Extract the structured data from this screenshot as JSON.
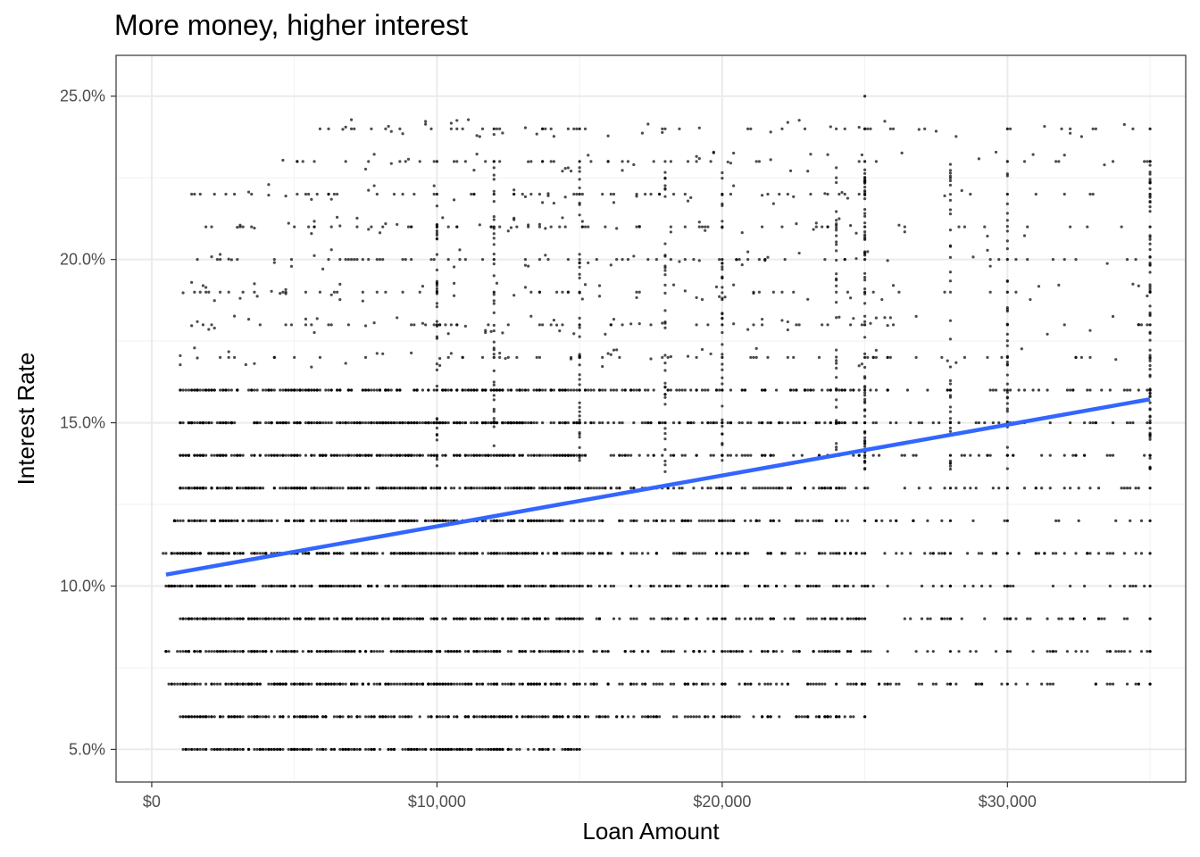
{
  "chart_data": {
    "type": "scatter",
    "title": "More money, higher interest",
    "xlabel": "Loan Amount",
    "ylabel": "Interest Rate",
    "xlim": [
      -1250,
      36250
    ],
    "ylim": [
      0.04,
      0.2625
    ],
    "x_ticks": [
      {
        "value": 0,
        "label": "$0"
      },
      {
        "value": 10000,
        "label": "$10,000"
      },
      {
        "value": 20000,
        "label": "$20,000"
      },
      {
        "value": 30000,
        "label": "$30,000"
      }
    ],
    "y_ticks": [
      {
        "value": 0.05,
        "label": "5.0%"
      },
      {
        "value": 0.1,
        "label": "10.0%"
      },
      {
        "value": 0.15,
        "label": "15.0%"
      },
      {
        "value": 0.2,
        "label": "20.0%"
      },
      {
        "value": 0.25,
        "label": "25.0%"
      }
    ],
    "points_description_rows": [
      {
        "rate": 0.05,
        "x_min": 1000,
        "x_max": 15000,
        "dense": true
      },
      {
        "rate": 0.06,
        "x_min": 1000,
        "x_max": 25500,
        "dense": true
      },
      {
        "rate": 0.07,
        "x_min": 600,
        "x_max": 35000,
        "dense": true
      },
      {
        "rate": 0.08,
        "x_min": 400,
        "x_max": 35000,
        "dense": true
      },
      {
        "rate": 0.09,
        "x_min": 1000,
        "x_max": 35000,
        "dense": true
      },
      {
        "rate": 0.1,
        "x_min": 400,
        "x_max": 35000,
        "dense": true
      },
      {
        "rate": 0.11,
        "x_min": 400,
        "x_max": 35000,
        "dense": true
      },
      {
        "rate": 0.12,
        "x_min": 700,
        "x_max": 35000,
        "dense": true
      },
      {
        "rate": 0.13,
        "x_min": 1000,
        "x_max": 35000,
        "dense": true
      },
      {
        "rate": 0.14,
        "x_min": 1000,
        "x_max": 35000,
        "dense": true
      },
      {
        "rate": 0.15,
        "x_min": 1000,
        "x_max": 35000,
        "dense": true
      },
      {
        "rate": 0.16,
        "x_min": 1000,
        "x_max": 35000,
        "dense": true
      },
      {
        "rate": 0.17,
        "x_min": 1000,
        "x_max": 35000,
        "dense": false
      },
      {
        "rate": 0.18,
        "x_min": 1000,
        "x_max": 35000,
        "dense": false
      },
      {
        "rate": 0.19,
        "x_min": 1000,
        "x_max": 35000,
        "dense": false
      },
      {
        "rate": 0.2,
        "x_min": 1500,
        "x_max": 35000,
        "dense": false
      },
      {
        "rate": 0.21,
        "x_min": 1500,
        "x_max": 35000,
        "dense": false
      },
      {
        "rate": 0.22,
        "x_min": 1300,
        "x_max": 35000,
        "dense": false
      },
      {
        "rate": 0.23,
        "x_min": 4000,
        "x_max": 35000,
        "dense": false
      },
      {
        "rate": 0.24,
        "x_min": 5800,
        "x_max": 35000,
        "dense": false
      },
      {
        "rate": 0.25,
        "x_min": 25000,
        "x_max": 25000,
        "dense": false
      }
    ],
    "trend_line": {
      "method": "lm",
      "color": "#3366FF",
      "x": [
        500,
        35000
      ],
      "y": [
        0.1035,
        0.1572
      ]
    },
    "point_color": "#000000",
    "grid": true,
    "theme": "bw"
  }
}
